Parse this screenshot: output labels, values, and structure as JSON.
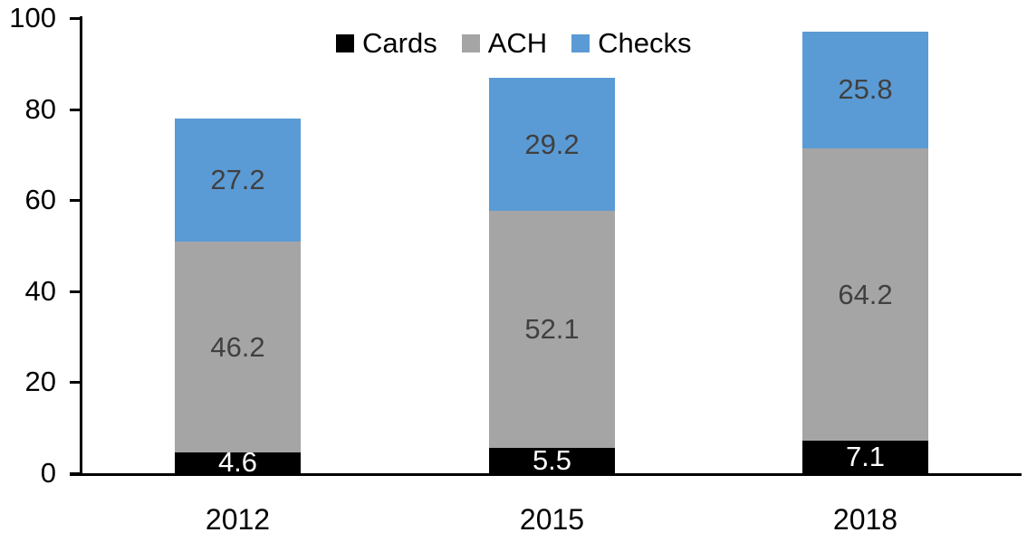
{
  "chart_data": {
    "type": "bar",
    "stacked": true,
    "title": "",
    "xlabel": "",
    "ylabel": "",
    "categories": [
      "2012",
      "2015",
      "2018"
    ],
    "series": [
      {
        "name": "Cards",
        "color": "#000000",
        "label_color": "#FFFFFF",
        "values": [
          4.6,
          5.5,
          7.1
        ]
      },
      {
        "name": "ACH",
        "color": "#A5A5A5",
        "label_color": "#404040",
        "values": [
          46.2,
          52.1,
          64.2
        ]
      },
      {
        "name": "Checks",
        "color": "#5B9BD5",
        "label_color": "#404040",
        "values": [
          27.2,
          29.2,
          25.8
        ]
      }
    ],
    "data_labels_shown": true,
    "y_axis": {
      "min": 0,
      "max": 100,
      "tick_step": 20,
      "ticks": [
        "0",
        "20",
        "40",
        "60",
        "80",
        "100"
      ]
    },
    "legend": {
      "position": "top-center",
      "entries": [
        "Cards",
        "ACH",
        "Checks"
      ]
    },
    "grid": false,
    "background_color": "#FFFFFF",
    "axis_color": "#000000"
  }
}
